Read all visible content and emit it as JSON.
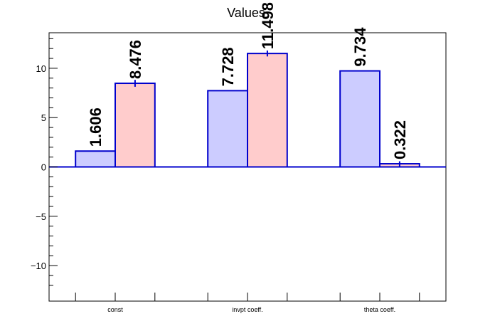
{
  "chart_data": {
    "type": "bar",
    "title": "Values",
    "xlabel": "",
    "ylabel": "",
    "categories": [
      "const",
      "invpt coeff.",
      "theta coeff."
    ],
    "ylim": [
      -13.6,
      13.6
    ],
    "yticks": [
      -10,
      -5,
      0,
      5,
      10
    ],
    "ytick_labels": [
      "−10",
      "−5",
      "0",
      "5",
      "10"
    ],
    "grid": false,
    "legend": "none",
    "series": [
      {
        "values": [
          1.606,
          7.728,
          9.734
        ],
        "errors": [
          0,
          0,
          0
        ],
        "labels": [
          "1.606",
          "7.728",
          "9.734"
        ],
        "fill": "#ccccff",
        "stroke": "#0000cc"
      },
      {
        "values": [
          8.476,
          11.498,
          0.322
        ],
        "errors": [
          0.35,
          0.3,
          0.25
        ],
        "labels": [
          "8.476",
          "11.498",
          "0.322"
        ],
        "fill": "#ffcccc",
        "stroke": "#0000cc"
      }
    ]
  }
}
